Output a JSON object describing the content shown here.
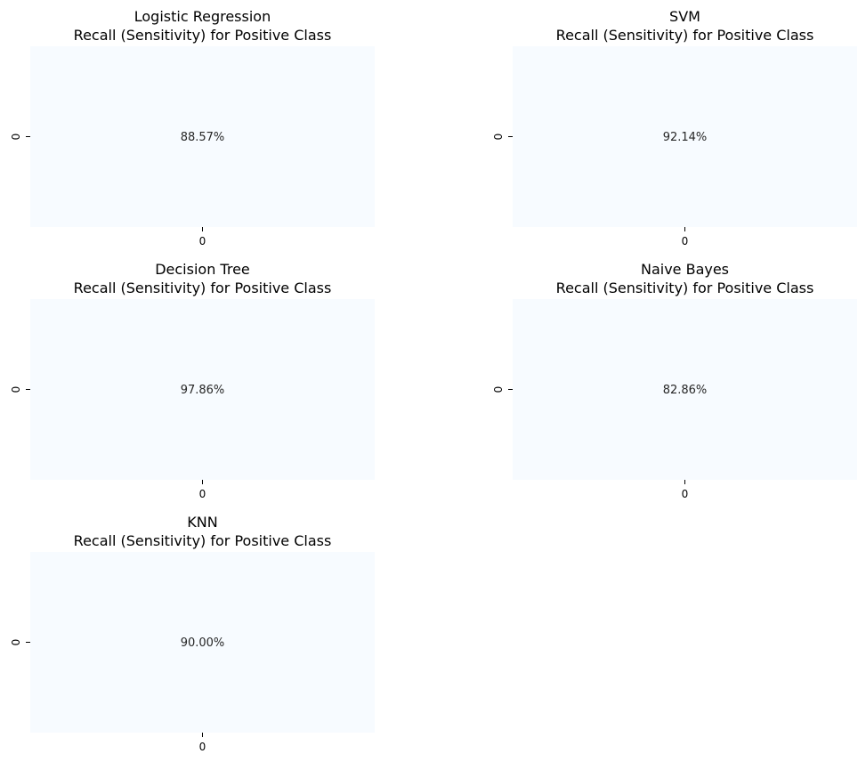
{
  "chart_data": [
    {
      "type": "heatmap",
      "title": "Logistic Regression",
      "subtitle": "Recall (Sensitivity) for Positive Class",
      "value": 88.57,
      "value_label": "88.57%",
      "x_ticks": [
        "0"
      ],
      "y_ticks": [
        "0"
      ],
      "cell_color": "#f7fbff"
    },
    {
      "type": "heatmap",
      "title": "SVM",
      "subtitle": "Recall (Sensitivity) for Positive Class",
      "value": 92.14,
      "value_label": "92.14%",
      "x_ticks": [
        "0"
      ],
      "y_ticks": [
        "0"
      ],
      "cell_color": "#f7fbff"
    },
    {
      "type": "heatmap",
      "title": "Decision Tree",
      "subtitle": "Recall (Sensitivity) for Positive Class",
      "value": 97.86,
      "value_label": "97.86%",
      "x_ticks": [
        "0"
      ],
      "y_ticks": [
        "0"
      ],
      "cell_color": "#f7fbff"
    },
    {
      "type": "heatmap",
      "title": "Naive Bayes",
      "subtitle": "Recall (Sensitivity) for Positive Class",
      "value": 82.86,
      "value_label": "82.86%",
      "x_ticks": [
        "0"
      ],
      "y_ticks": [
        "0"
      ],
      "cell_color": "#f7fbff"
    },
    {
      "type": "heatmap",
      "title": "KNN",
      "subtitle": "Recall (Sensitivity) for Positive Class",
      "value": 90.0,
      "value_label": "90.00%",
      "x_ticks": [
        "0"
      ],
      "y_ticks": [
        "0"
      ],
      "cell_color": "#f7fbff"
    }
  ]
}
